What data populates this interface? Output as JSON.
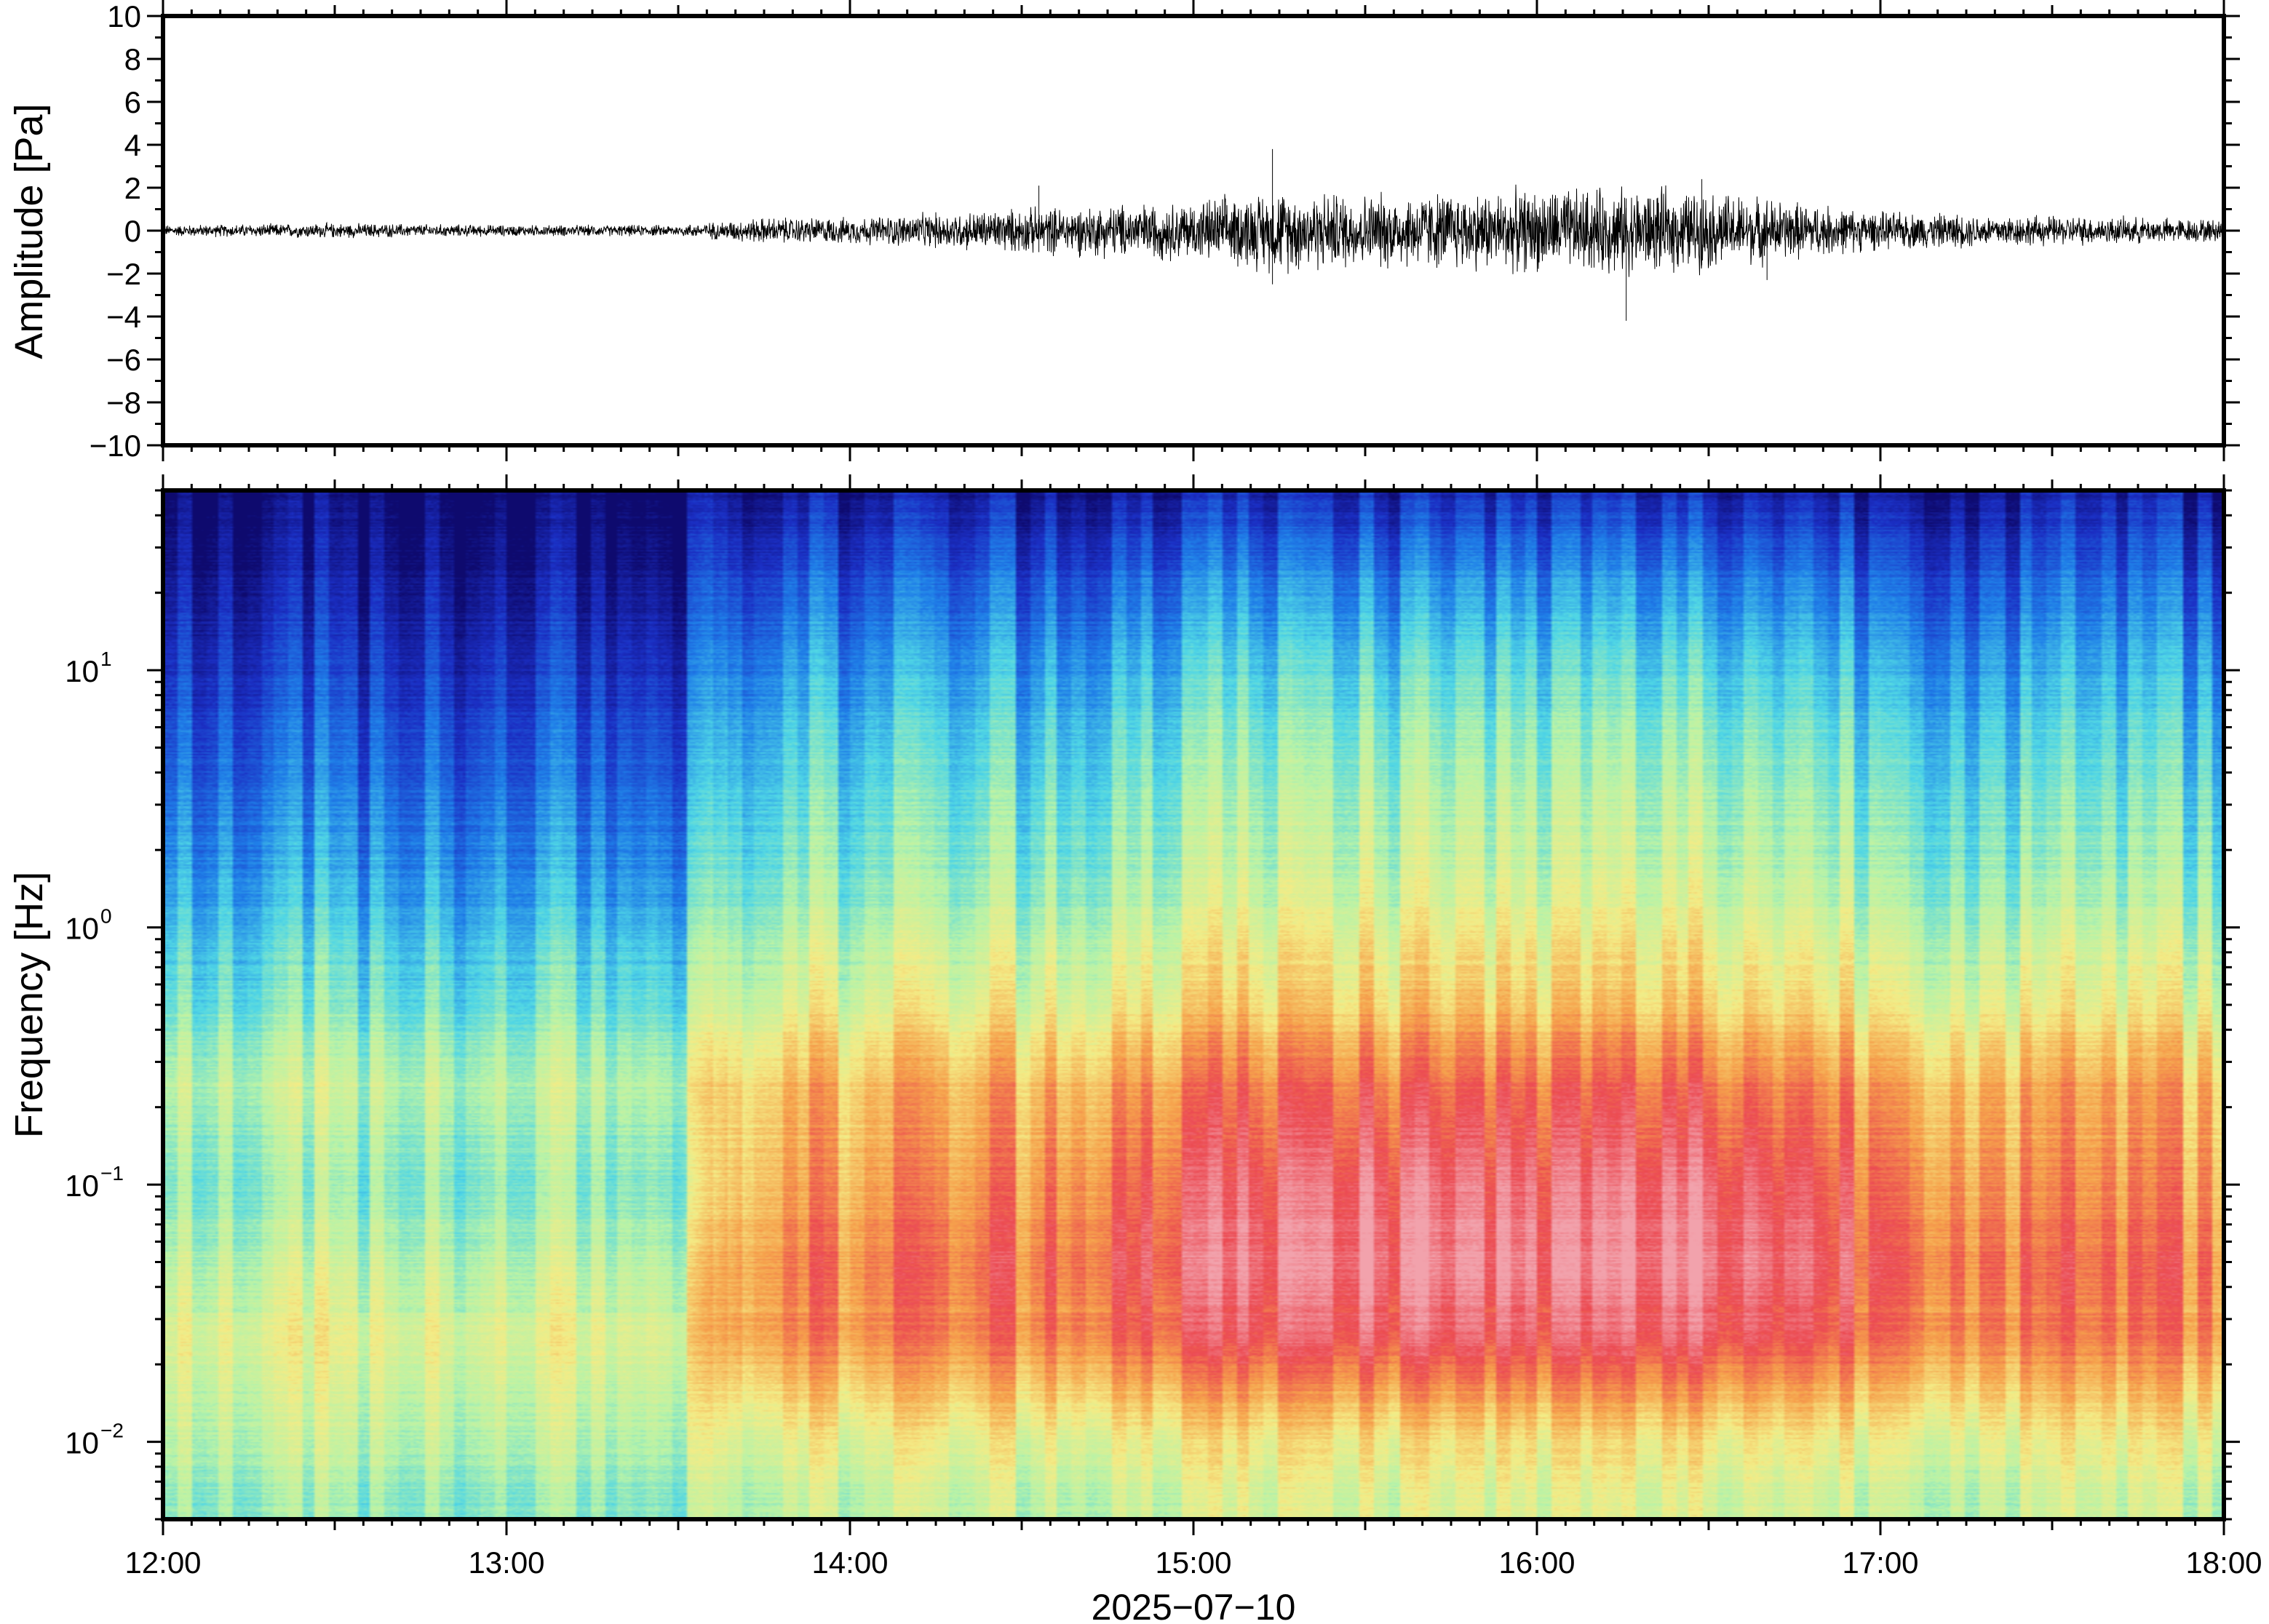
{
  "chart_data": [
    {
      "type": "line",
      "panel": "waveform",
      "ylabel": "Amplitude [Pa]",
      "ylim": [
        -10,
        10
      ],
      "yticks": [
        10,
        8,
        6,
        4,
        2,
        0,
        -2,
        -4,
        -6,
        -8,
        -10
      ],
      "ytick_labels": [
        "10",
        "8",
        "6",
        "4",
        "2",
        "0",
        "−2",
        "−4",
        "−6",
        "−8",
        "−10"
      ],
      "x_range_hours": [
        12,
        18
      ],
      "amplitude_envelope": {
        "time_hours": [
          12.0,
          12.5,
          13.0,
          13.5,
          13.75,
          14.0,
          14.5,
          15.0,
          15.25,
          15.5,
          16.0,
          16.25,
          16.5,
          17.0,
          17.5,
          18.0
        ],
        "peak_pa": [
          0.3,
          0.4,
          0.3,
          0.3,
          0.7,
          0.7,
          1.2,
          1.6,
          2.2,
          2.0,
          2.2,
          2.3,
          2.1,
          1.0,
          0.8,
          0.6
        ]
      },
      "spikes": [
        {
          "t": 14.55,
          "max": 2.1,
          "min": -1.0
        },
        {
          "t": 15.23,
          "max": 3.8,
          "min": -2.5
        },
        {
          "t": 16.26,
          "max": 1.5,
          "min": -4.2
        },
        {
          "t": 16.48,
          "max": 2.4,
          "min": -1.6
        },
        {
          "t": 16.67,
          "max": 1.4,
          "min": -2.3
        }
      ],
      "line_color": "#000000"
    },
    {
      "type": "heatmap",
      "panel": "spectrogram",
      "ylabel": "Frequency [Hz]",
      "y_scale": "log",
      "ylim_hz": [
        0.005,
        50
      ],
      "yticks": [
        {
          "base": "10",
          "exp": "1",
          "value": 10
        },
        {
          "base": "10",
          "exp": "0",
          "value": 1
        },
        {
          "base": "10",
          "exp": "−1",
          "value": 0.1
        },
        {
          "base": "10",
          "exp": "−2",
          "value": 0.01
        }
      ],
      "x_range_hours": [
        12,
        18
      ],
      "colormap": "jet",
      "colormap_stops": [
        "#0e0a6e",
        "#1b2fc4",
        "#1f7ee8",
        "#4fd6e6",
        "#b8f3a8",
        "#f4ec86",
        "#f6a24c",
        "#ec4a52",
        "#f2a2ac"
      ],
      "power_profile": {
        "log10_freq": [
          -2.3,
          -2.0,
          -1.6,
          -1.3,
          -1.0,
          -0.6,
          -0.2,
          0.2,
          0.6,
          1.0,
          1.4,
          1.7
        ],
        "level_early": [
          0.45,
          0.52,
          0.58,
          0.52,
          0.45,
          0.52,
          0.4,
          0.3,
          0.22,
          0.14,
          0.06,
          0.0
        ],
        "level_peak": [
          0.56,
          0.64,
          0.92,
          1.0,
          0.96,
          0.84,
          0.66,
          0.56,
          0.5,
          0.4,
          0.26,
          0.1
        ]
      },
      "activity_timeline": {
        "time_hours": [
          12.0,
          13.5,
          13.7,
          14.5,
          15.0,
          15.5,
          16.0,
          16.5,
          17.0,
          17.5,
          18.0
        ],
        "activity": [
          0.0,
          0.05,
          0.55,
          0.65,
          0.85,
          0.95,
          0.9,
          0.95,
          0.75,
          0.6,
          0.6
        ]
      }
    }
  ],
  "xaxis": {
    "ticks": [
      "12:00",
      "13:00",
      "14:00",
      "15:00",
      "16:00",
      "17:00",
      "18:00"
    ],
    "date_label": "2025−07−10"
  }
}
